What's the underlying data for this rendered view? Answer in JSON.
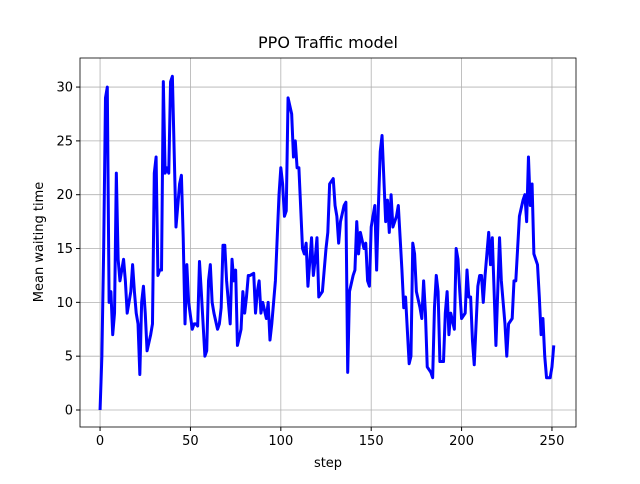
{
  "chart_data": {
    "type": "line",
    "title": "PPO Traffic model",
    "x_label": "step",
    "y_label": "Mean waiting time",
    "x": [
      0,
      1,
      2,
      3,
      4,
      5,
      6,
      7,
      8,
      9,
      10,
      11,
      13,
      14,
      15,
      16,
      17,
      18,
      19,
      20,
      21,
      22,
      23,
      24,
      25,
      26,
      28,
      29,
      30,
      31,
      32,
      33,
      34,
      35,
      36,
      37,
      38,
      39,
      40,
      41,
      42,
      44,
      45,
      46,
      47,
      48,
      49,
      51,
      52,
      53,
      54,
      55,
      56,
      58,
      59,
      60,
      61,
      62,
      63,
      65,
      66,
      67,
      68,
      69,
      70,
      72,
      73,
      74,
      75,
      76,
      78,
      79,
      80,
      81,
      82,
      83,
      85,
      86,
      87,
      88,
      89,
      90,
      92,
      93,
      94,
      95,
      96,
      97,
      99,
      100,
      101,
      102,
      103,
      104,
      106,
      107,
      108,
      109,
      110,
      112,
      113,
      114,
      115,
      117,
      118,
      119,
      120,
      121,
      123,
      124,
      125,
      126,
      127,
      129,
      130,
      131,
      132,
      133,
      135,
      136,
      137,
      138,
      140,
      141,
      142,
      143,
      144,
      146,
      147,
      148,
      149,
      150,
      152,
      153,
      154,
      155,
      156,
      158,
      159,
      160,
      161,
      162,
      164,
      165,
      166,
      167,
      168,
      169,
      171,
      172,
      173,
      174,
      175,
      177,
      178,
      179,
      180,
      181,
      183,
      184,
      185,
      186,
      187,
      188,
      190,
      191,
      192,
      193,
      194,
      196,
      197,
      198,
      199,
      200,
      202,
      203,
      204,
      205,
      206,
      207,
      209,
      210,
      211,
      212,
      213,
      215,
      216,
      217,
      218,
      219,
      221,
      222,
      223,
      224,
      225,
      226,
      228,
      229,
      230,
      231,
      232,
      234,
      235,
      236,
      237,
      238,
      239,
      240,
      242,
      243,
      244,
      245,
      246,
      247,
      249,
      250,
      251
    ],
    "series": [
      {
        "name": "Mean waiting time",
        "color": "#0000ff",
        "values": [
          0,
          5,
          15,
          29,
          30,
          10,
          11,
          7,
          9,
          22,
          14,
          12,
          14,
          12,
          9,
          10,
          11,
          13.5,
          11,
          9,
          8,
          3.3,
          10,
          11.5,
          9,
          5.5,
          7,
          8,
          22,
          23.5,
          12.5,
          13,
          13,
          30.5,
          22,
          22.5,
          22,
          30.5,
          31,
          24,
          17,
          21,
          21.8,
          16,
          8,
          13.5,
          10,
          7.5,
          8,
          8,
          7.8,
          13.8,
          11,
          5,
          5.5,
          12,
          13.5,
          10,
          9,
          7.5,
          8,
          9.5,
          15.3,
          15.3,
          12,
          8,
          14,
          12,
          13,
          6,
          7.5,
          11,
          9,
          10.5,
          12.5,
          12.5,
          12.7,
          9,
          11,
          12,
          9,
          10,
          8.5,
          10,
          6.5,
          8,
          10,
          12,
          20,
          22.5,
          21,
          18,
          18.5,
          29,
          27.5,
          23.5,
          25,
          22.5,
          22.5,
          15,
          14.5,
          15.5,
          11.5,
          16,
          12.5,
          14,
          16,
          10.5,
          11,
          13,
          15,
          16.5,
          21,
          21.5,
          19,
          18,
          15.5,
          17.5,
          19,
          19.3,
          3.5,
          11,
          12.5,
          13,
          17.5,
          14.5,
          16.5,
          15,
          15.5,
          12,
          11.5,
          17,
          19,
          13,
          19,
          24,
          25.5,
          17.5,
          19.5,
          16.5,
          20,
          17,
          18,
          19,
          16,
          13,
          9.5,
          10.5,
          4.3,
          5,
          15.5,
          14.5,
          11,
          9.5,
          8.5,
          12,
          9,
          4,
          3.5,
          3,
          9.5,
          12.5,
          11,
          4.5,
          4.5,
          9,
          11,
          7,
          9,
          7.5,
          15,
          14,
          11,
          8.5,
          9,
          13,
          10.5,
          10.5,
          6.5,
          4.2,
          11.5,
          12.5,
          12.5,
          10,
          12.5,
          16.5,
          13.5,
          16,
          11,
          6,
          16,
          12,
          10,
          8,
          5,
          8,
          8.5,
          12,
          12,
          15,
          18,
          19.5,
          20,
          17.5,
          23.5,
          19,
          21,
          14.5,
          13.5,
          10.5,
          7,
          8.5,
          5,
          3,
          3,
          4,
          6
        ]
      }
    ],
    "xlim": [
      -11.1,
      263.3
    ],
    "ylim": [
      -1.58,
      32.7
    ],
    "xticks": [
      0,
      50,
      100,
      150,
      200,
      250
    ],
    "yticks": [
      0,
      5,
      10,
      15,
      20,
      25,
      30
    ],
    "grid": true
  }
}
